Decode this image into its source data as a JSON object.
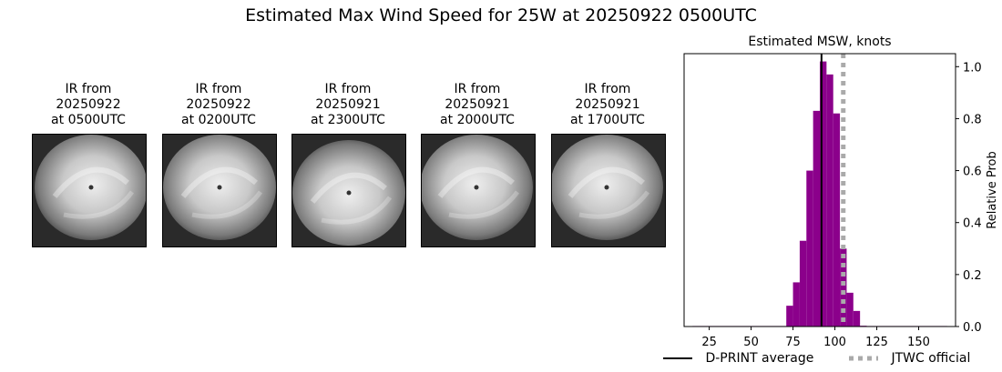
{
  "title": "Estimated Max Wind Speed for 25W at 20250922 0500UTC",
  "ir_panels": [
    {
      "caption": [
        "IR from",
        "20250922",
        "at 0500UTC"
      ]
    },
    {
      "caption": [
        "IR from",
        "20250922",
        "at 0200UTC"
      ]
    },
    {
      "caption": [
        "IR from",
        "20250921",
        "at 2300UTC"
      ]
    },
    {
      "caption": [
        "IR from",
        "20250921",
        "at 2000UTC"
      ]
    },
    {
      "caption": [
        "IR from",
        "20250921",
        "at 1700UTC"
      ]
    }
  ],
  "legend": {
    "dprint": "D-PRINT average",
    "jtwc": "JTWC official"
  },
  "colors": {
    "bars": "#8b008b",
    "dprint": "#000000",
    "jtwc": "#aaaaaa"
  },
  "chart_data": {
    "type": "bar",
    "title": "Estimated MSW, knots",
    "xlabel": "",
    "ylabel": "Relative Prob",
    "xlim": [
      10,
      172
    ],
    "ylim": [
      0,
      1.05
    ],
    "xticks": [
      25,
      50,
      75,
      100,
      125,
      150
    ],
    "yticks": [
      0.0,
      0.2,
      0.4,
      0.6,
      0.8,
      1.0
    ],
    "bin_width": 4,
    "bins_x": [
      17,
      21,
      25,
      29,
      33,
      37,
      41,
      45,
      49,
      53,
      57,
      61,
      65,
      69,
      73,
      77,
      81,
      85,
      89,
      93,
      97,
      101,
      105,
      109,
      113,
      117,
      121,
      125,
      129,
      133,
      137,
      141,
      145,
      149,
      153,
      157,
      161,
      165
    ],
    "bins_prob": [
      0.002,
      0.002,
      0.002,
      0.002,
      0.002,
      0.002,
      0.002,
      0.002,
      0.002,
      0.002,
      0.002,
      0.002,
      0.002,
      0.002,
      0.08,
      0.17,
      0.33,
      0.6,
      0.83,
      1.02,
      0.97,
      0.82,
      0.3,
      0.13,
      0.06,
      0.003,
      0.002,
      0.002,
      0.002,
      0.002,
      0.002,
      0.002,
      0.002,
      0.002,
      0.002,
      0.002,
      0.002,
      0.002
    ],
    "dprint_average": 92,
    "jtwc_official": 105
  }
}
